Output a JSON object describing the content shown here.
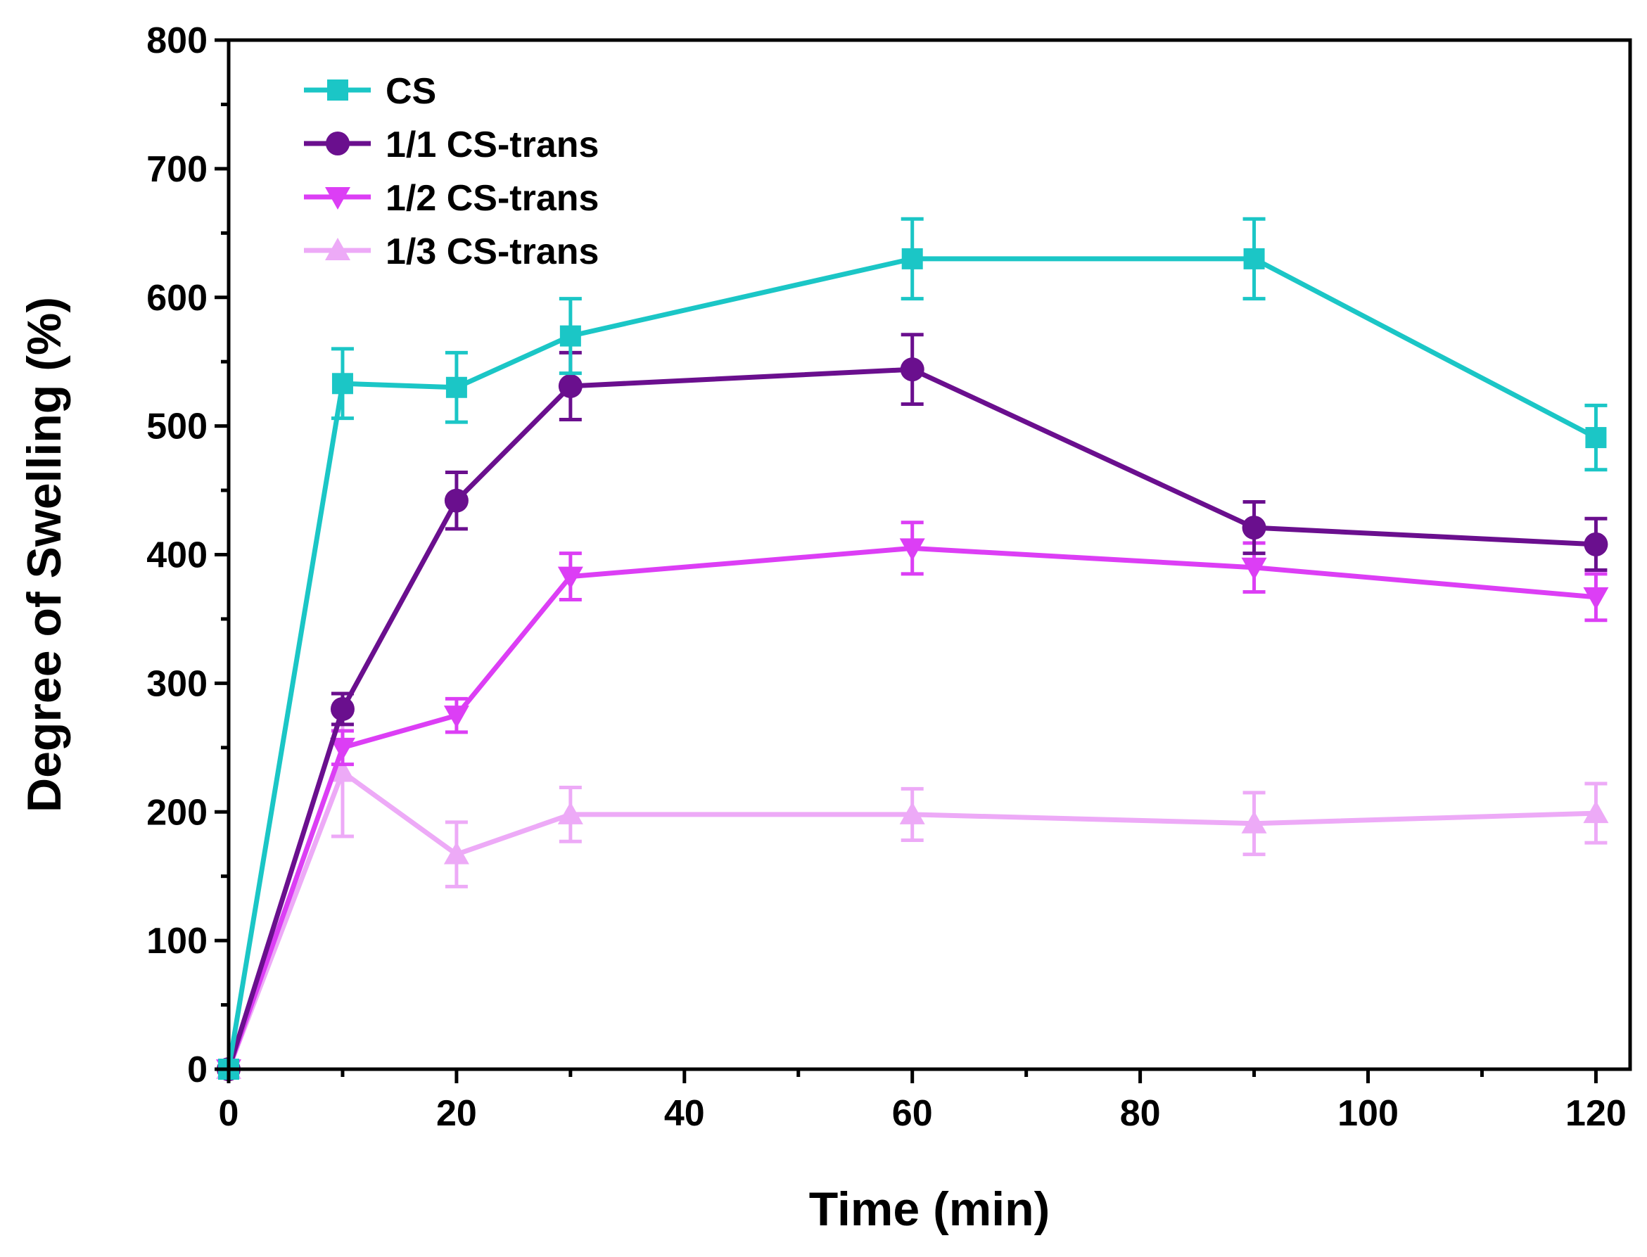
{
  "chart_data": {
    "type": "line",
    "title": "",
    "xlabel": "Time (min)",
    "ylabel": "Degree of Swelling (%)",
    "xlim": [
      0,
      123
    ],
    "ylim": [
      0,
      800
    ],
    "xticks": [
      0,
      20,
      40,
      60,
      80,
      100,
      120
    ],
    "yticks": [
      0,
      100,
      200,
      300,
      400,
      500,
      600,
      700,
      800
    ],
    "xtick_labels": [
      "0",
      "20",
      "40",
      "60",
      "80",
      "100",
      "120"
    ],
    "ytick_labels": [
      "0",
      "100",
      "200",
      "300",
      "400",
      "500",
      "600",
      "700",
      "800"
    ],
    "x_minor_step": 10,
    "y_minor_step": 50,
    "grid": false,
    "legend_position": "top-left",
    "x": [
      0,
      10,
      20,
      30,
      60,
      90,
      120
    ],
    "series": [
      {
        "name": "CS",
        "color": "#1bc6c6",
        "marker": "square",
        "values": [
          0,
          533,
          530,
          570,
          630,
          630,
          491
        ],
        "errors": [
          0,
          27,
          27,
          29,
          31,
          31,
          25
        ]
      },
      {
        "name": "1/1 CS-trans",
        "color": "#6a0f8e",
        "marker": "circle",
        "values": [
          0,
          280,
          442,
          531,
          544,
          421,
          408
        ],
        "errors": [
          0,
          12,
          22,
          26,
          27,
          20,
          20
        ]
      },
      {
        "name": "1/2 CS-trans",
        "color": "#dc3ef5",
        "marker": "triangle-down",
        "values": [
          0,
          250,
          275,
          383,
          405,
          390,
          367
        ],
        "errors": [
          0,
          13,
          13,
          18,
          20,
          19,
          18
        ]
      },
      {
        "name": "1/3 CS-trans",
        "color": "#edaaf7",
        "marker": "triangle-up",
        "values": [
          0,
          231,
          167,
          198,
          198,
          191,
          199
        ],
        "errors": [
          0,
          50,
          25,
          21,
          20,
          24,
          23
        ]
      }
    ]
  }
}
